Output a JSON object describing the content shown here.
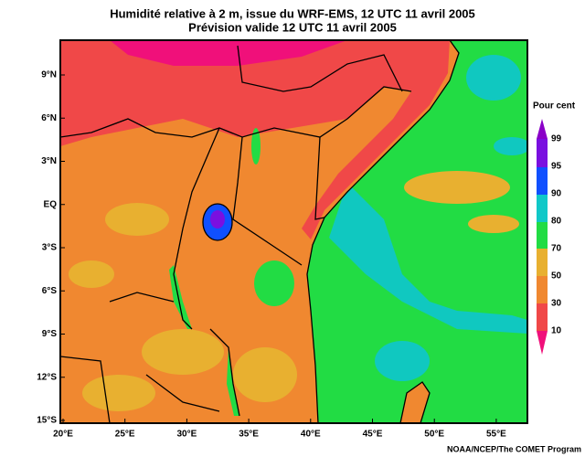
{
  "title": [
    "Humidité relative à 2 m, issue du WRF-EMS, 12 UTC 11 avril 2005",
    "Prévision valide 12 UTC 11 avril 2005"
  ],
  "lat_labels": [
    "9°N",
    "6°N",
    "3°N",
    "EQ",
    "3°S",
    "6°S",
    "9°S",
    "12°S",
    "15°S"
  ],
  "lon_labels": [
    "20°E",
    "25°E",
    "30°E",
    "35°E",
    "40°E",
    "45°E",
    "50°E",
    "55°E"
  ],
  "legend": {
    "title": "Pour cent",
    "labels": [
      99,
      95,
      90,
      80,
      70,
      50,
      30,
      10
    ]
  },
  "credit": "NOAA/NCEP/The COMET Program"
}
